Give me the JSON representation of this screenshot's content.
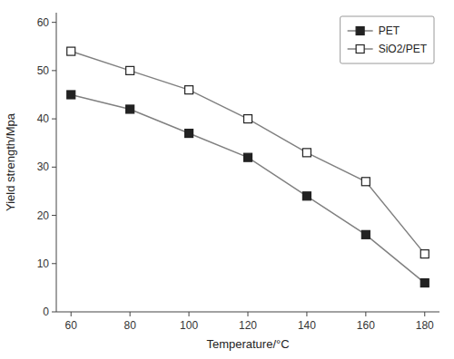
{
  "chart_data": {
    "type": "line",
    "xlabel": "Temperature/°C",
    "ylabel": "Yield strength/Mpa",
    "x": [
      60,
      80,
      100,
      120,
      140,
      160,
      180
    ],
    "series": [
      {
        "name": "PET",
        "color": "#808080",
        "marker": "square",
        "values": [
          45,
          42,
          37,
          32,
          24,
          16,
          6
        ]
      },
      {
        "name": "SiO2/PET",
        "color": "#808080",
        "marker": "square-open",
        "values": [
          54,
          50,
          46,
          40,
          33,
          27,
          12
        ]
      }
    ],
    "xlim": [
      55,
      185
    ],
    "ylim": [
      0,
      62
    ],
    "xticks": [
      60,
      80,
      100,
      120,
      140,
      160,
      180
    ],
    "yticks": [
      0,
      10,
      20,
      30,
      40,
      50,
      60
    ],
    "grid": false,
    "legend": "upper-right"
  }
}
